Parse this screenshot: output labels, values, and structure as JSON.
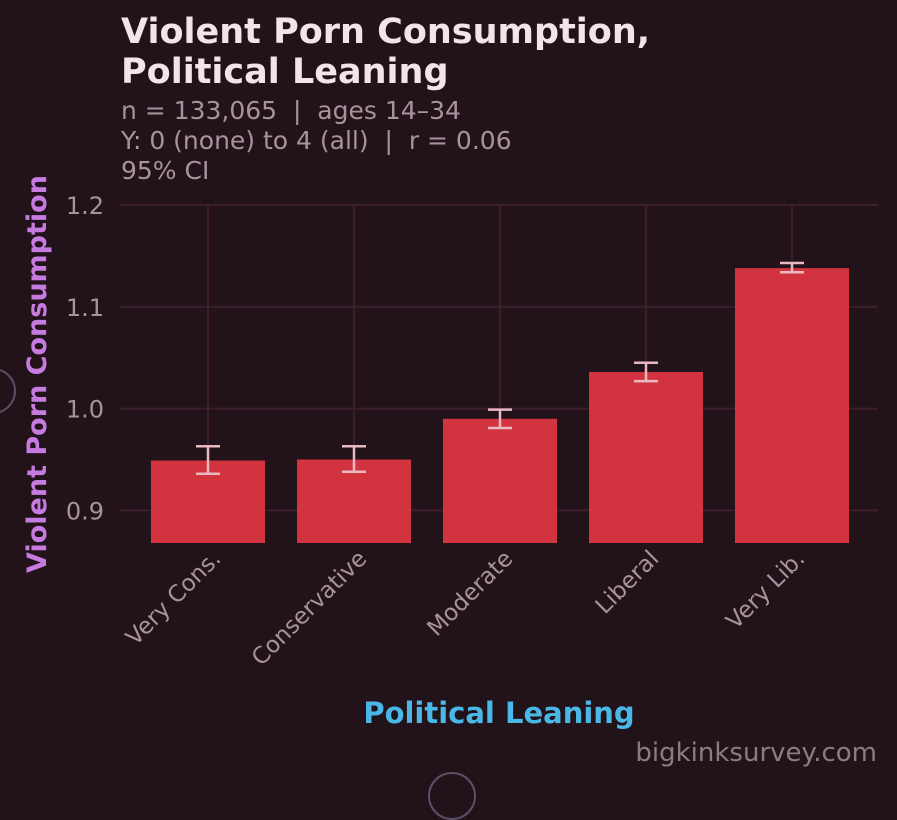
{
  "chart_data": {
    "type": "bar",
    "title_lines": [
      "Violent Porn Consumption,",
      "Political Leaning"
    ],
    "subtitle_lines": [
      "n = 133,065  |  ages 14–34",
      "Y: 0 (none) to 4 (all)  |  r = 0.06",
      "95% CI"
    ],
    "xlabel": "Political Leaning",
    "ylabel": "Violent Porn Consumption",
    "categories": [
      "Very Cons.",
      "Conservative",
      "Moderate",
      "Liberal",
      "Very Lib."
    ],
    "values": [
      0.949,
      0.95,
      0.99,
      1.036,
      1.138
    ],
    "ci_low": [
      0.936,
      0.938,
      0.981,
      1.027,
      1.134
    ],
    "ci_high": [
      0.963,
      0.963,
      0.999,
      1.045,
      1.143
    ],
    "yticks": [
      0.9,
      1.0,
      1.1,
      1.2
    ],
    "ytick_labels": [
      "0.9",
      "1.0",
      "1.1",
      "1.2"
    ],
    "ylim": [
      0.868,
      1.2
    ],
    "grid": true,
    "colors": {
      "bar": "#d1343f",
      "errorbar": "#e9b9c2",
      "grid": "#3d1f2c",
      "tick_text": "#a8929c",
      "xlabel": "#4ab8e6",
      "ylabel": "#c77be0"
    }
  },
  "watermark": "bigkinksurvey.com"
}
